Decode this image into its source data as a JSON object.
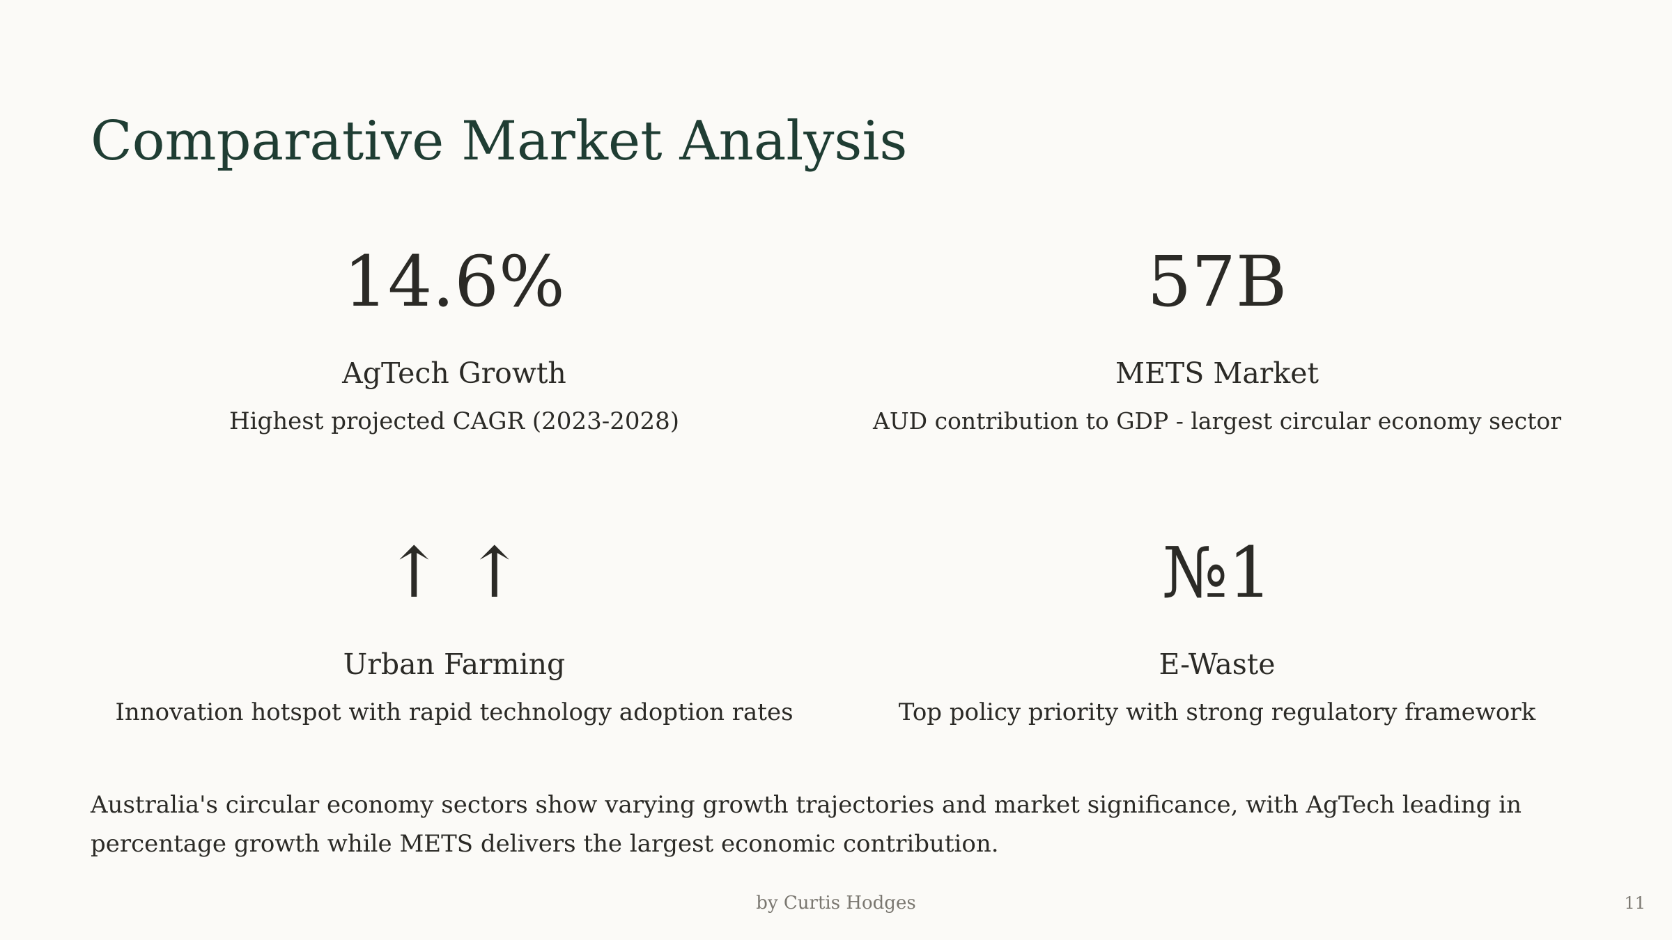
{
  "slide": {
    "title": "Comparative Market Analysis",
    "stats": [
      {
        "value": "14.6%",
        "label": "AgTech Growth",
        "description": "Highest projected CAGR (2023-2028)"
      },
      {
        "value": "57B",
        "label": "METS Market",
        "description": "AUD contribution to GDP - largest circular economy sector"
      },
      {
        "value": "↑ ↑",
        "label": "Urban Farming",
        "description": "Innovation hotspot with rapid technology adoption rates"
      },
      {
        "value": "№1",
        "label": "E-Waste",
        "description": "Top policy priority with strong regulatory framework"
      }
    ],
    "summary": "Australia's circular economy sectors show varying growth trajectories and market significance, with AgTech leading in percentage growth while METS delivers the largest economic contribution.",
    "author": "by Curtis Hodges",
    "page_number": "11"
  },
  "colors": {
    "background": "#fbfaf7",
    "title": "#1f3d33",
    "text": "#2b2a26",
    "muted": "#7a7770"
  }
}
